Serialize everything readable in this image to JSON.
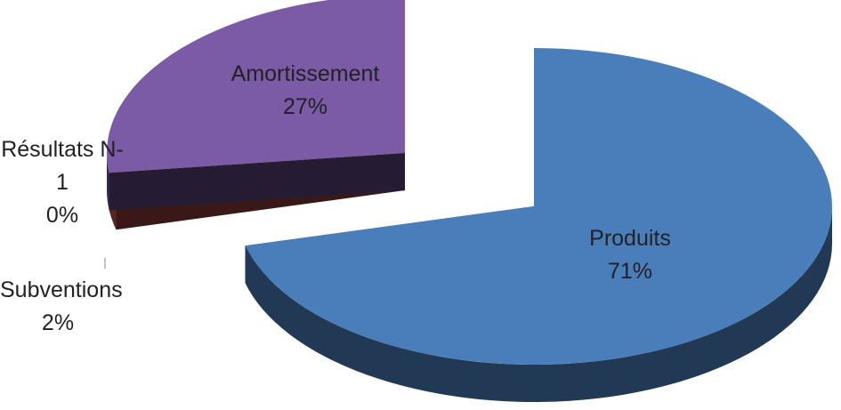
{
  "chart_data": {
    "type": "pie3d",
    "categories": [
      "Produits",
      "Subventions",
      "Résultats N-1",
      "Amortissement"
    ],
    "values": [
      71,
      2,
      0,
      27
    ],
    "value_labels": [
      "71%",
      "2%",
      "0%",
      "27%"
    ],
    "colors": [
      "#4a7ebb",
      "#c0504d",
      "#9bbb59",
      "#7b5aa6"
    ]
  }
}
